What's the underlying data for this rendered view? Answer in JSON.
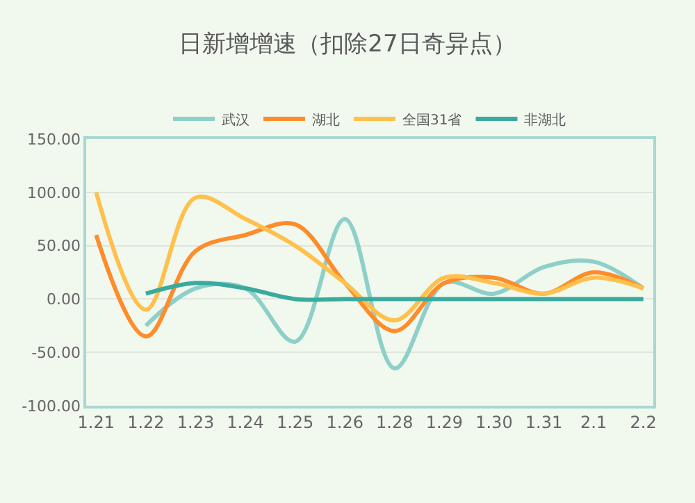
{
  "chart_data": {
    "type": "line",
    "title": "日新增增速（扣除27日奇异点）",
    "categories": [
      "1.21",
      "1.22",
      "1.23",
      "1.24",
      "1.25",
      "1.26",
      "1.28",
      "1.29",
      "1.30",
      "1.31",
      "2.1",
      "2.2"
    ],
    "series": [
      {
        "name": "武汉",
        "color": "#8ecfc9",
        "values": [
          null,
          -25,
          10,
          10,
          -40,
          75,
          -65,
          15,
          5,
          30,
          35,
          10
        ]
      },
      {
        "name": "湖北",
        "color": "#ff8c2a",
        "values": [
          60,
          -35,
          45,
          60,
          70,
          15,
          -30,
          15,
          20,
          5,
          25,
          10
        ]
      },
      {
        "name": "全国31省",
        "color": "#ffc04d",
        "values": [
          100,
          -10,
          95,
          75,
          50,
          15,
          -20,
          20,
          15,
          5,
          20,
          10
        ]
      },
      {
        "name": "非湖北",
        "color": "#3aaa9e",
        "values": [
          null,
          5,
          15,
          10,
          0,
          0,
          0,
          0,
          0,
          0,
          0,
          0
        ]
      }
    ],
    "ylim": [
      -100,
      150
    ],
    "yticks": [
      {
        "value": -100,
        "label": "-100.00"
      },
      {
        "value": -50,
        "label": "-50.00"
      },
      {
        "value": 0,
        "label": "0.00"
      },
      {
        "value": 50,
        "label": "50.00"
      },
      {
        "value": 100,
        "label": "100.00"
      },
      {
        "value": 150,
        "label": "150.00"
      }
    ],
    "grid": "y",
    "legend": "top",
    "marker": "none",
    "line_style": "solid"
  }
}
